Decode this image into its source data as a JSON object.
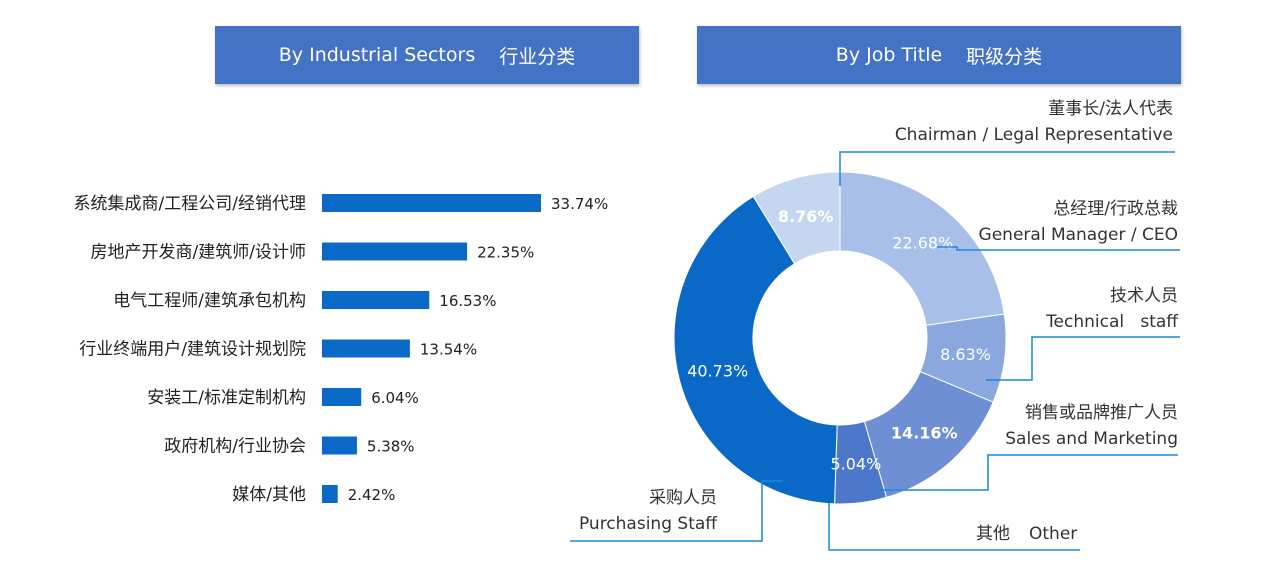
{
  "chart_data": [
    {
      "type": "bar",
      "orientation": "horizontal",
      "header": {
        "en": "By Industrial Sectors",
        "zh": "行业分类"
      },
      "categories": [
        "系统集成商/工程公司/经销代理",
        "房地产开发商/建筑师/设计师",
        "电气工程师/建筑承包机构",
        "行业终端用户/建筑设计规划院",
        "安装工/标准定制机构",
        "政府机构/行业协会",
        "媒体/其他"
      ],
      "values": [
        33.74,
        22.35,
        16.53,
        13.54,
        6.04,
        5.38,
        2.42
      ],
      "value_labels": [
        "33.74%",
        "22.35%",
        "16.53%",
        "13.54%",
        "6.04%",
        "5.38%",
        "2.42%"
      ],
      "color": "#0a69c6",
      "xlim": [
        0,
        40
      ]
    },
    {
      "type": "pie",
      "donut": true,
      "header": {
        "en": "By Job Title",
        "zh": "职级分类"
      },
      "slices": [
        {
          "zh": "董事长/法人代表",
          "en": "Chairman / Legal Representative",
          "value": 8.76,
          "label": "8.76%",
          "color": "#c5d6f1",
          "bold": true
        },
        {
          "zh": "总经理/行政总裁",
          "en": "General Manager / CEO",
          "value": 22.68,
          "label": "22.68%",
          "color": "#a7bfe9",
          "bold": false
        },
        {
          "zh": "技术人员",
          "en": "Technical   staff",
          "value": 8.63,
          "label": "8.63%",
          "color": "#8aa7de",
          "bold": false
        },
        {
          "zh": "销售或品牌推广人员",
          "en": "Sales and Marketing",
          "value": 14.16,
          "label": "14.16%",
          "color": "#6f8fd4",
          "bold": true
        },
        {
          "zh": "其他",
          "en": "Other",
          "value": 5.04,
          "label": "5.04%",
          "color": "#4d78c9",
          "bold": false
        },
        {
          "zh": "采购人员",
          "en": "Purchasing Staff",
          "value": 40.73,
          "label": "40.73%",
          "color": "#0a69c6",
          "bold": false
        }
      ],
      "leader_color": "#1a8ad6"
    }
  ]
}
